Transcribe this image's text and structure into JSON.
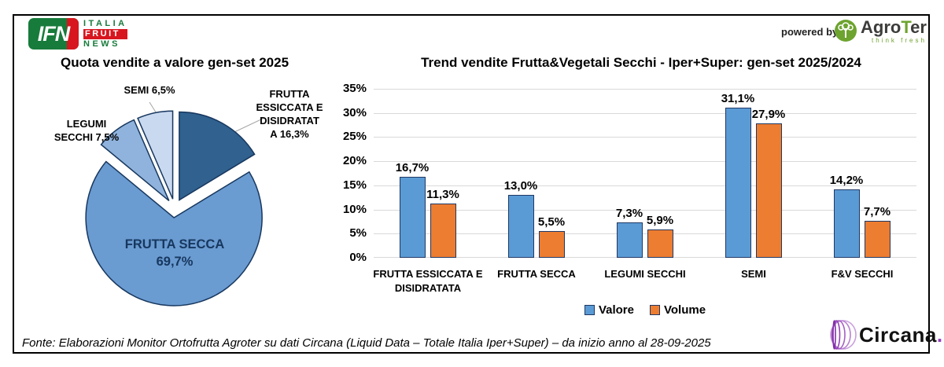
{
  "header": {
    "ifn_logo": {
      "short": "IFN",
      "line1": "ITALIA",
      "line2": "FRUIT",
      "line3": "NEWS"
    },
    "powered_by": "powered by",
    "agroter": {
      "agro": "Agro",
      "t": "T",
      "er": "er",
      "tagline": "think fresh"
    }
  },
  "chart_data": [
    {
      "type": "pie",
      "title": "Quota vendite a valore gen-set 2025",
      "labels": [
        "FRUTTA ESSICCATA E DISIDRATATA",
        "FRUTTA SECCA",
        "LEGUMI SECCHI",
        "SEMI"
      ],
      "values": [
        16.3,
        69.7,
        7.5,
        6.5
      ],
      "colors": [
        "#30618f",
        "#6a9bd1",
        "#8fb3dc",
        "#c9d9f0"
      ],
      "exploded": true,
      "start_angle_deg": 0,
      "direction": "clockwise",
      "callouts": {
        "essiccata": "FRUTTA\nESSICCATA E\nDISIDRATAT\nA 16,3%",
        "frutta_secca": "FRUTTA SECCA\n69,7%",
        "legumi": "LEGUMI\nSECCHI 7,5%",
        "semi": "SEMI 6,5%"
      }
    },
    {
      "type": "bar",
      "title": "Trend vendite Frutta&Vegetali Secchi - Iper+Super: gen-set 2025/2024",
      "categories": [
        "FRUTTA ESSICCATA E DISIDRATATA",
        "FRUTTA SECCA",
        "LEGUMI SECCHI",
        "SEMI",
        "F&V SECCHI"
      ],
      "series": [
        {
          "name": "Valore",
          "color": "#5b9bd5",
          "values": [
            16.7,
            13.0,
            7.3,
            31.1,
            14.2
          ],
          "labels": [
            "16,7%",
            "13,0%",
            "7,3%",
            "31,1%",
            "14,2%"
          ]
        },
        {
          "name": "Volume",
          "color": "#ed7d31",
          "values": [
            11.3,
            5.5,
            5.9,
            27.9,
            7.7
          ],
          "labels": [
            "11,3%",
            "5,5%",
            "5,9%",
            "27,9%",
            "7,7%"
          ]
        }
      ],
      "ylim": [
        0,
        35
      ],
      "yticks": [
        "0%",
        "5%",
        "10%",
        "15%",
        "20%",
        "25%",
        "30%",
        "35%"
      ],
      "grid": true,
      "legend_position": "bottom"
    }
  ],
  "footer": {
    "source": "Fonte: Elaborazioni Monitor Ortofrutta Agroter su dati Circana (Liquid Data – Totale Italia Iper+Super) –  da inizio anno al 28-09-2025"
  },
  "circana": {
    "name": "Circana",
    "dot": "."
  },
  "colors": {
    "valore_blue": "#5b9bd5",
    "volume_orange": "#ed7d31",
    "pie_border": "#17375e",
    "gridline": "#d9d9d9"
  }
}
